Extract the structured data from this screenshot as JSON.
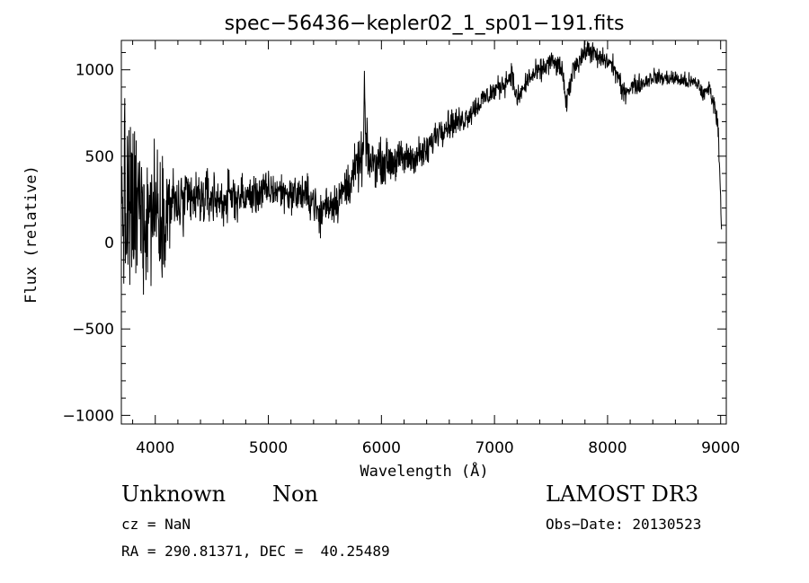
{
  "chart_data": {
    "type": "line",
    "title": "spec−56436−kepler02_1_sp01−191.fits",
    "xlabel": "Wavelength (Å)",
    "ylabel": "Flux (relative)",
    "xlim": [
      3700,
      9050
    ],
    "ylim": [
      -1050,
      1170
    ],
    "xticks": [
      {
        "value": 4000,
        "label": "4000"
      },
      {
        "value": 5000,
        "label": "5000"
      },
      {
        "value": 6000,
        "label": "6000"
      },
      {
        "value": 7000,
        "label": "7000"
      },
      {
        "value": 8000,
        "label": "8000"
      },
      {
        "value": 9000,
        "label": "9000"
      }
    ],
    "yticks": [
      {
        "value": -1000,
        "label": "−1000"
      },
      {
        "value": -500,
        "label": "−500"
      },
      {
        "value": 0,
        "label": "0"
      },
      {
        "value": 500,
        "label": "500"
      },
      {
        "value": 1000,
        "label": "1000"
      }
    ],
    "series": [
      {
        "x": [
          3705,
          3720,
          3740,
          3760,
          3780,
          3800,
          3830,
          3860,
          3900,
          3950,
          4000,
          4050,
          4100,
          4150,
          4200,
          4300,
          4400,
          4500,
          4600,
          4700,
          4800,
          4900,
          5000,
          5100,
          5200,
          5300,
          5400,
          5450,
          5500,
          5600,
          5700,
          5800,
          5840,
          5850,
          5860,
          5900,
          6000,
          6100,
          6200,
          6300,
          6400,
          6500,
          6600,
          6700,
          6800,
          6900,
          7000,
          7100,
          7150,
          7200,
          7300,
          7400,
          7500,
          7600,
          7630,
          7700,
          7800,
          7850,
          7900,
          8000,
          8050,
          8100,
          8130,
          8200,
          8300,
          8400,
          8500,
          8600,
          8700,
          8800,
          8850,
          8900,
          8950,
          8980,
          9000,
          9010
        ],
        "y": [
          150,
          250,
          100,
          200,
          120,
          180,
          150,
          220,
          180,
          200,
          220,
          180,
          200,
          230,
          210,
          240,
          250,
          260,
          240,
          270,
          260,
          280,
          300,
          300,
          280,
          280,
          250,
          140,
          220,
          240,
          330,
          450,
          500,
          940,
          560,
          460,
          470,
          470,
          480,
          500,
          520,
          650,
          690,
          700,
          760,
          830,
          880,
          930,
          980,
          820,
          950,
          990,
          1050,
          1000,
          790,
          1020,
          1100,
          1120,
          1070,
          1050,
          1020,
          950,
          860,
          900,
          920,
          960,
          950,
          950,
          930,
          920,
          850,
          900,
          780,
          650,
          250,
          50
        ],
        "noise": [
          480,
          480,
          480,
          480,
          480,
          450,
          420,
          400,
          380,
          350,
          300,
          280,
          220,
          190,
          160,
          150,
          140,
          130,
          120,
          110,
          100,
          95,
          90,
          90,
          90,
          90,
          100,
          100,
          100,
          100,
          110,
          120,
          120,
          120,
          120,
          110,
          100,
          95,
          90,
          85,
          80,
          75,
          70,
          65,
          60,
          60,
          55,
          55,
          55,
          55,
          55,
          55,
          55,
          55,
          55,
          55,
          55,
          55,
          55,
          50,
          50,
          50,
          50,
          45,
          45,
          40,
          40,
          40,
          40,
          40,
          40,
          40,
          40,
          40,
          40,
          40
        ]
      }
    ]
  },
  "footer": {
    "object_class": "Unknown",
    "object_subclass": "Non",
    "survey": "LAMOST DR3",
    "redshift": "cz = NaN",
    "obs_date": "Obs−Date: 20130523",
    "coords": "RA = 290.81371, DEC =  40.25489"
  }
}
